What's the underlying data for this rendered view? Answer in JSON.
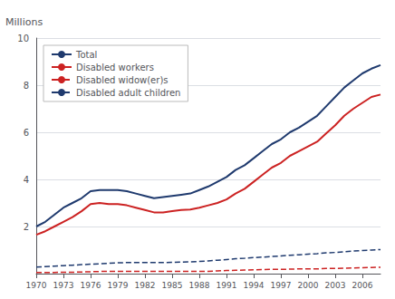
{
  "chart_data": {
    "type": "line",
    "ylabel": "Millions",
    "x": [
      1970,
      1971,
      1972,
      1973,
      1974,
      1975,
      1976,
      1977,
      1978,
      1979,
      1980,
      1981,
      1982,
      1983,
      1984,
      1985,
      1986,
      1987,
      1988,
      1989,
      1990,
      1991,
      1992,
      1993,
      1994,
      1995,
      1996,
      1997,
      1998,
      1999,
      2000,
      2001,
      2002,
      2003,
      2004,
      2005,
      2006,
      2007,
      2008
    ],
    "series": [
      {
        "name": "Total",
        "color": "#1f3a6e",
        "line_style": "solid",
        "values": [
          2.0,
          2.2,
          2.5,
          2.8,
          3.0,
          3.2,
          3.5,
          3.55,
          3.55,
          3.55,
          3.5,
          3.4,
          3.3,
          3.2,
          3.25,
          3.3,
          3.35,
          3.4,
          3.55,
          3.7,
          3.9,
          4.1,
          4.4,
          4.6,
          4.9,
          5.2,
          5.5,
          5.7,
          6.0,
          6.2,
          6.45,
          6.7,
          7.1,
          7.5,
          7.9,
          8.2,
          8.5,
          8.7,
          8.85
        ]
      },
      {
        "name": "Disabled workers",
        "color": "#cc2222",
        "line_style": "solid",
        "values": [
          1.65,
          1.8,
          2.0,
          2.2,
          2.4,
          2.65,
          2.95,
          3.0,
          2.95,
          2.95,
          2.9,
          2.8,
          2.7,
          2.6,
          2.6,
          2.65,
          2.7,
          2.72,
          2.8,
          2.9,
          3.0,
          3.15,
          3.4,
          3.6,
          3.9,
          4.2,
          4.5,
          4.7,
          5.0,
          5.2,
          5.4,
          5.6,
          5.95,
          6.3,
          6.7,
          7.0,
          7.25,
          7.5,
          7.6
        ]
      },
      {
        "name": "Disabled widow(er)s",
        "color": "#cc2222",
        "line_style": "dashed",
        "values": [
          0.05,
          0.05,
          0.05,
          0.06,
          0.06,
          0.07,
          0.08,
          0.09,
          0.1,
          0.1,
          0.1,
          0.1,
          0.1,
          0.1,
          0.1,
          0.1,
          0.1,
          0.1,
          0.1,
          0.1,
          0.12,
          0.13,
          0.14,
          0.15,
          0.16,
          0.17,
          0.18,
          0.18,
          0.19,
          0.2,
          0.2,
          0.2,
          0.22,
          0.22,
          0.23,
          0.24,
          0.25,
          0.26,
          0.27
        ]
      },
      {
        "name": "Disabled adult children",
        "color": "#1f3a6e",
        "line_style": "dashed",
        "values": [
          0.28,
          0.3,
          0.32,
          0.34,
          0.36,
          0.38,
          0.4,
          0.42,
          0.44,
          0.46,
          0.47,
          0.47,
          0.47,
          0.47,
          0.47,
          0.48,
          0.49,
          0.5,
          0.52,
          0.54,
          0.57,
          0.6,
          0.63,
          0.65,
          0.68,
          0.7,
          0.73,
          0.75,
          0.78,
          0.8,
          0.83,
          0.85,
          0.88,
          0.9,
          0.93,
          0.96,
          0.98,
          1.0,
          1.02
        ]
      }
    ],
    "xlim": [
      1970,
      2008
    ],
    "xticks": [
      1970,
      1973,
      1976,
      1979,
      1982,
      1985,
      1988,
      1991,
      1994,
      1997,
      2000,
      2003,
      2006
    ],
    "ylim": [
      0,
      10
    ],
    "yticks": [
      2,
      4,
      6,
      8,
      10
    ],
    "grid": true,
    "legend": "upper left"
  }
}
